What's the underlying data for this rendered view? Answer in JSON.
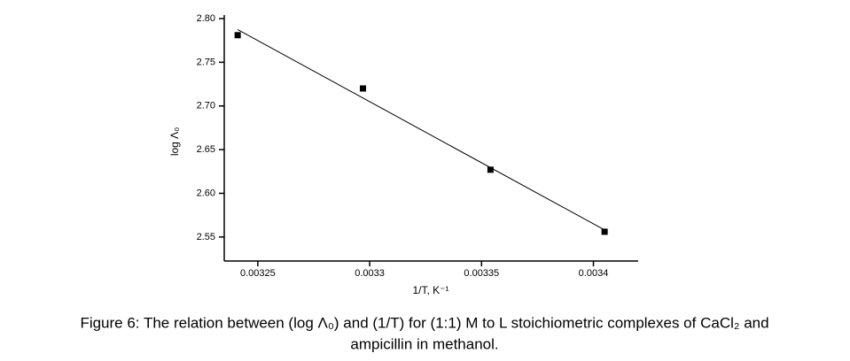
{
  "chart_data": {
    "type": "scatter",
    "x_label": "1/T, K⁻¹",
    "y_label": "log Λ₀",
    "x": [
      0.003241,
      0.003297,
      0.003354,
      0.003405
    ],
    "series": [
      {
        "color": "#000000",
        "values": [
          2.781,
          2.72,
          2.627,
          2.556
        ]
      }
    ],
    "fit_line": true,
    "xlim": [
      0.003235,
      0.00342
    ],
    "ylim": [
      2.5225,
      2.8
    ],
    "xticks": [
      0.00325,
      0.0033,
      0.00335,
      0.0034
    ],
    "yticks": [
      {
        "value": 2.55,
        "label": "2.55"
      },
      {
        "value": 2.6,
        "label": "2.60"
      },
      {
        "value": 2.65,
        "label": "2.65"
      },
      {
        "value": 2.7,
        "label": "2.70"
      },
      {
        "value": 2.75,
        "label": "2.75"
      },
      {
        "value": 2.8,
        "label": "2.80"
      }
    ]
  },
  "caption": [
    "Figure 6: The relation between (log Λ₀) and (1/T) for (1:1) M to L stoichiometric complexes of CaCl₂ and",
    "ampicillin in methanol."
  ]
}
